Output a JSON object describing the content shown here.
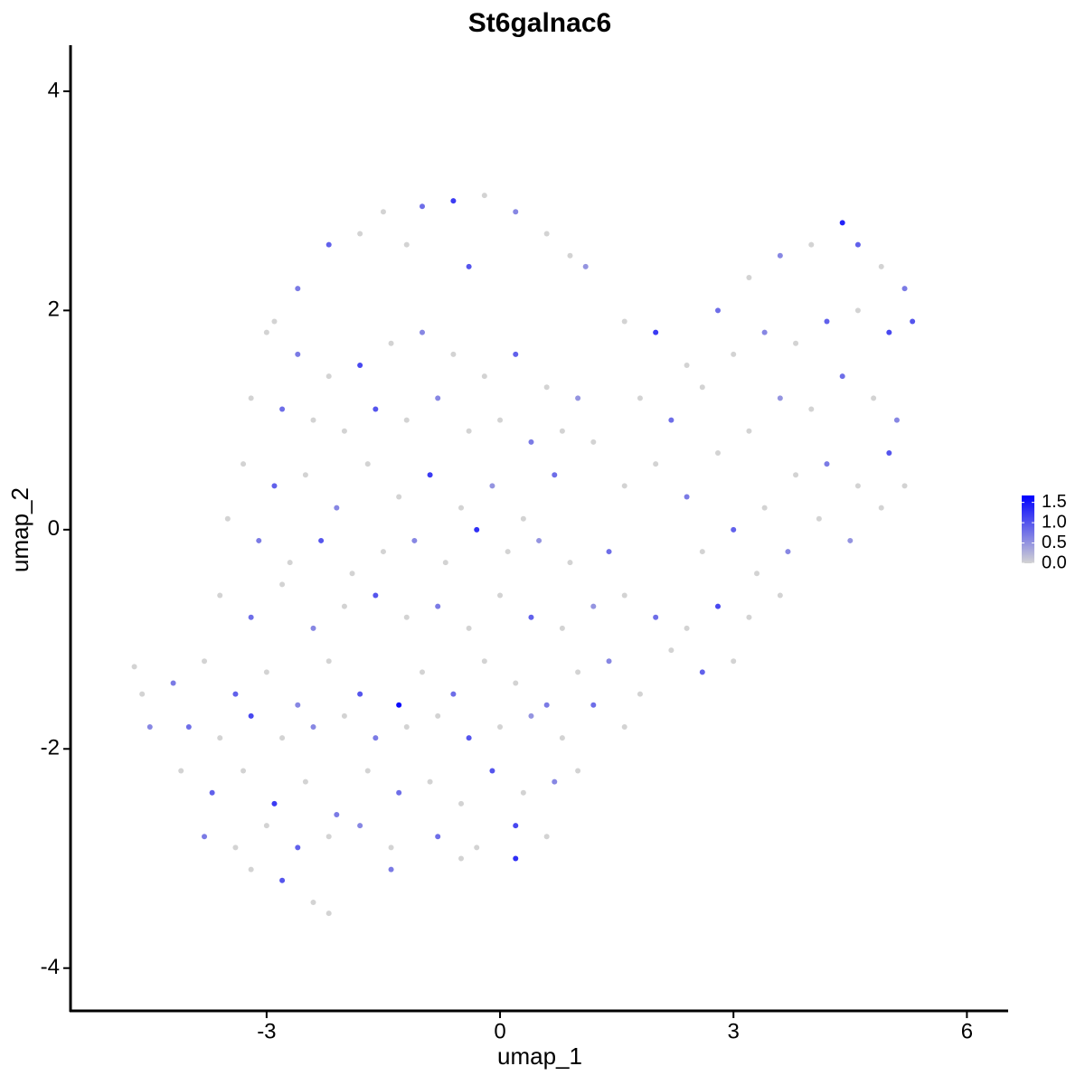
{
  "chart_data": {
    "type": "scatter",
    "title": "St6galnac6",
    "x_label": "umap_1",
    "y_label": "umap_2",
    "xlim": [
      -5.52,
      6.53
    ],
    "ylim": [
      -4.39,
      4.42
    ],
    "xticks": [
      -3,
      0,
      3,
      6
    ],
    "yticks": [
      -4,
      -2,
      0,
      2,
      4
    ],
    "color_low": "#d3d3d3",
    "color_high": "#0000ff",
    "colorbar_lim": [
      0,
      1.67
    ],
    "colorbar_ticks": [
      {
        "value": 0,
        "label": "0.0"
      },
      0.5,
      {
        "value": 1,
        "label": "1.0"
      },
      1.5
    ],
    "x": [
      -1.5,
      -1.0,
      -0.6,
      -0.2,
      0.2,
      0.6,
      -2.2,
      -1.8,
      -2.6,
      -2.9,
      0.9,
      1.1,
      -1.2,
      -0.4,
      -3.0,
      -2.6,
      -2.2,
      -1.8,
      -1.4,
      -1.0,
      -0.6,
      -0.2,
      0.2,
      0.6,
      1.0,
      -3.2,
      -2.8,
      -2.4,
      -2.0,
      -1.6,
      -1.2,
      -0.8,
      -0.4,
      0.0,
      0.4,
      0.8,
      1.2,
      -3.3,
      -2.9,
      -2.5,
      -2.1,
      -1.7,
      -1.3,
      -0.9,
      -0.5,
      -0.1,
      0.3,
      0.7,
      -3.5,
      -3.1,
      -2.7,
      -2.3,
      -1.9,
      -1.5,
      -1.1,
      -0.7,
      -0.3,
      0.1,
      0.5,
      0.9,
      -3.6,
      -3.2,
      -2.8,
      -2.4,
      -2.0,
      -1.6,
      -1.2,
      -0.8,
      -0.4,
      0.0,
      0.4,
      0.8,
      1.2,
      1.6,
      2.0,
      2.4,
      2.8,
      3.2,
      3.6,
      -4.2,
      -3.8,
      -3.4,
      -3.0,
      -2.6,
      -2.2,
      -1.8,
      -1.3,
      -1.0,
      -0.6,
      -0.2,
      0.2,
      0.6,
      1.0,
      1.4,
      1.8,
      2.2,
      2.6,
      3.0,
      -4.0,
      -3.6,
      -3.2,
      -2.8,
      -2.4,
      -2.0,
      -1.6,
      -1.2,
      -0.8,
      -0.4,
      0.0,
      0.4,
      0.8,
      1.2,
      1.6,
      -4.1,
      -3.7,
      -3.3,
      -2.9,
      -2.5,
      -2.1,
      -1.7,
      -1.3,
      -0.9,
      -0.5,
      -0.1,
      0.3,
      0.7,
      1.0,
      -3.8,
      -3.4,
      -3.0,
      -2.6,
      -2.2,
      -1.8,
      -1.4,
      -0.8,
      -0.3,
      0.2,
      0.6,
      -3.2,
      -2.8,
      -2.4,
      -2.2,
      -1.4,
      -0.5,
      0.2,
      -4.7,
      -4.6,
      -4.5,
      1.6,
      2.0,
      2.4,
      2.8,
      3.2,
      3.6,
      4.0,
      4.4,
      4.6,
      4.9,
      5.2,
      5.3,
      1.8,
      2.2,
      2.6,
      3.0,
      3.4,
      3.8,
      4.2,
      4.6,
      5.0,
      2.0,
      2.4,
      2.8,
      3.2,
      3.6,
      4.0,
      4.4,
      4.8,
      5.1,
      2.6,
      3.0,
      3.4,
      3.8,
      4.2,
      4.6,
      5.0,
      5.2,
      3.3,
      3.7,
      4.1,
      4.5,
      4.9,
      1.6,
      1.4
    ],
    "y": [
      2.9,
      2.95,
      3.0,
      3.05,
      2.9,
      2.7,
      2.6,
      2.7,
      2.2,
      1.9,
      2.5,
      2.4,
      2.6,
      2.4,
      1.8,
      1.6,
      1.4,
      1.5,
      1.7,
      1.8,
      1.6,
      1.4,
      1.6,
      1.3,
      1.2,
      1.2,
      1.1,
      1.0,
      0.9,
      1.1,
      1.0,
      1.2,
      0.9,
      1.0,
      0.8,
      0.9,
      0.8,
      0.6,
      0.4,
      0.5,
      0.2,
      0.6,
      0.3,
      0.5,
      0.2,
      0.4,
      0.1,
      0.5,
      0.1,
      -0.1,
      -0.3,
      -0.1,
      -0.4,
      -0.2,
      -0.1,
      -0.3,
      0.0,
      -0.2,
      -0.1,
      -0.3,
      -0.6,
      -0.8,
      -0.5,
      -0.9,
      -0.7,
      -0.6,
      -0.8,
      -0.7,
      -0.9,
      -0.6,
      -0.8,
      -0.9,
      -0.7,
      -0.6,
      -0.8,
      -0.9,
      -0.7,
      -0.8,
      -0.6,
      -1.4,
      -1.2,
      -1.5,
      -1.3,
      -1.6,
      -1.2,
      -1.5,
      -1.6,
      -1.3,
      -1.5,
      -1.2,
      -1.4,
      -1.6,
      -1.3,
      -1.2,
      -1.5,
      -1.1,
      -1.3,
      -1.2,
      -1.8,
      -1.9,
      -1.7,
      -1.9,
      -1.8,
      -1.7,
      -1.9,
      -1.8,
      -1.7,
      -1.9,
      -1.8,
      -1.7,
      -1.9,
      -1.6,
      -1.8,
      -2.2,
      -2.4,
      -2.2,
      -2.5,
      -2.3,
      -2.6,
      -2.2,
      -2.4,
      -2.3,
      -2.5,
      -2.2,
      -2.4,
      -2.3,
      -2.2,
      -2.8,
      -2.9,
      -2.7,
      -2.9,
      -2.8,
      -2.7,
      -2.9,
      -2.8,
      -2.9,
      -2.7,
      -2.8,
      -3.1,
      -3.2,
      -3.4,
      -3.5,
      -3.1,
      -3.0,
      -3.0,
      -1.25,
      -1.5,
      -1.8,
      1.9,
      1.8,
      1.5,
      2.0,
      2.3,
      2.5,
      2.6,
      2.8,
      2.6,
      2.4,
      2.2,
      1.9,
      1.2,
      1.0,
      1.3,
      1.6,
      1.8,
      1.7,
      1.9,
      2.0,
      1.8,
      0.6,
      0.3,
      0.7,
      0.9,
      1.2,
      1.1,
      1.4,
      1.2,
      1.0,
      -0.2,
      0.0,
      0.2,
      0.5,
      0.6,
      0.4,
      0.7,
      0.4,
      -0.4,
      -0.2,
      0.1,
      -0.1,
      0.2,
      0.4,
      -0.2
    ],
    "values": [
      0,
      0.8,
      1.2,
      0,
      0.6,
      0,
      0.9,
      0,
      0.7,
      0,
      0,
      0.5,
      0,
      1.0,
      0,
      0.7,
      0,
      1.1,
      0,
      0.6,
      0,
      0,
      0.9,
      0,
      0.5,
      0,
      0.8,
      0,
      0,
      1.0,
      0,
      0.6,
      0,
      0,
      0.7,
      0,
      0,
      0,
      0.9,
      0,
      0.6,
      0,
      0,
      1.2,
      0,
      0.5,
      0,
      0.8,
      0,
      0.7,
      0,
      1.0,
      0,
      0,
      0.6,
      0,
      1.3,
      0,
      0.5,
      0,
      0,
      0.8,
      0,
      0.6,
      0,
      1.0,
      0,
      0.7,
      0,
      0,
      0.9,
      0,
      0.5,
      0,
      0.8,
      0,
      1.1,
      0,
      0,
      0.7,
      0,
      0.9,
      0,
      0.6,
      0,
      1.0,
      1.6,
      0,
      0.8,
      0,
      0,
      0.7,
      0,
      0.6,
      0,
      0,
      0.9,
      0,
      0.8,
      0,
      1.1,
      0,
      0.6,
      0,
      0.7,
      0,
      0,
      1.0,
      0,
      0.5,
      0,
      0.8,
      0,
      0,
      0.9,
      0,
      1.2,
      0,
      0.7,
      0,
      0.8,
      0,
      0,
      1.0,
      0,
      0.6,
      0,
      0.7,
      0,
      0,
      0.9,
      0,
      0.6,
      0,
      0.8,
      0,
      1.1,
      0,
      0,
      1.0,
      0,
      0,
      0.7,
      0,
      1.3,
      0,
      0,
      0.6,
      0,
      1.2,
      0,
      0.8,
      0,
      0.6,
      0,
      1.4,
      0.9,
      0,
      0.7,
      1.0,
      0,
      0.8,
      0,
      0,
      0.6,
      0,
      0.9,
      0,
      1.1,
      0,
      0.7,
      0,
      0,
      0.5,
      0,
      0.8,
      0,
      0.6,
      0,
      0.9,
      0,
      0,
      0.7,
      0,
      1.0,
      0,
      0,
      0.6,
      0,
      0.5,
      0,
      0,
      0.8
    ]
  }
}
